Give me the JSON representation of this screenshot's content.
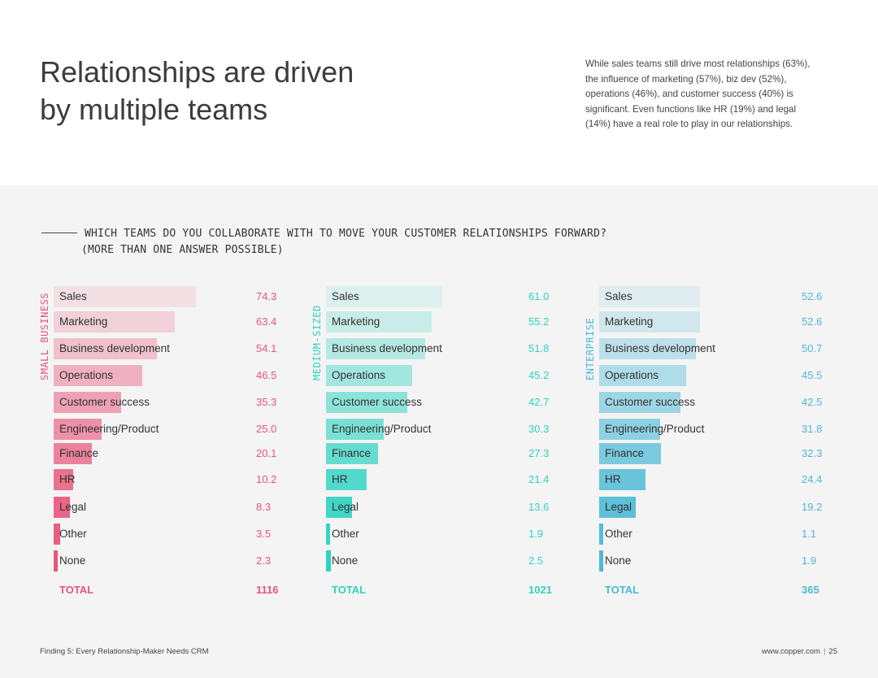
{
  "header": {
    "title_line1": "Relationships are driven",
    "title_line2": "by multiple teams",
    "intro": "While sales teams still drive most relationships (63%), the influence of marketing (57%), biz dev (52%), operations (46%), and customer success (40%) is significant. Even functions like HR (19%) and legal (14%) have a real role to play in our relationships."
  },
  "question": {
    "line1": "WHICH TEAMS DO YOU COLLABORATE WITH TO MOVE YOUR CUSTOMER RELATIONSHIPS FORWARD?",
    "line2": "(MORE THAN ONE ANSWER POSSIBLE)"
  },
  "chart_data": [
    {
      "type": "bar",
      "orientation": "horizontal",
      "segment": "SMALL BUSINESS",
      "color": "#e8547a",
      "categories": [
        "Sales",
        "Marketing",
        "Business development",
        "Operations",
        "Customer success",
        "Engineering/Product",
        "Finance",
        "HR",
        "Legal",
        "Other",
        "None"
      ],
      "values": [
        74.3,
        63.4,
        54.1,
        46.5,
        35.3,
        25.0,
        20.1,
        10.2,
        8.3,
        3.5,
        2.3
      ],
      "labels": [
        "74.3",
        "63.4",
        "54.1",
        "46.5",
        "35.3",
        "25.0",
        "20.1",
        "10.2",
        "8.3",
        "3.5",
        "2.3"
      ],
      "total_label": "TOTAL",
      "total": "1116"
    },
    {
      "type": "bar",
      "orientation": "horizontal",
      "segment": "MEDIUM-SIZED",
      "color": "#2ed3c0",
      "categories": [
        "Sales",
        "Marketing",
        "Business development",
        "Operations",
        "Customer success",
        "Engineering/Product",
        "Finance",
        "HR",
        "Legal",
        "Other",
        "None"
      ],
      "values": [
        61.0,
        55.2,
        51.8,
        45.2,
        42.7,
        30.3,
        27.3,
        21.4,
        13.6,
        1.9,
        2.5
      ],
      "labels": [
        "61.0",
        "55.2",
        "51.8",
        "45.2",
        "42.7",
        "30.3",
        "27.3",
        "21.4",
        "13.6",
        "1.9",
        "2.5"
      ],
      "total_label": "TOTAL",
      "total": "1021"
    },
    {
      "type": "bar",
      "orientation": "horizontal",
      "segment": "ENTERPRISE",
      "color": "#4cb9d6",
      "categories": [
        "Sales",
        "Marketing",
        "Business development",
        "Operations",
        "Customer success",
        "Engineering/Product",
        "Finance",
        "HR",
        "Legal",
        "Other",
        "None"
      ],
      "values": [
        52.6,
        52.6,
        50.7,
        45.5,
        42.5,
        31.8,
        32.3,
        24.4,
        19.2,
        1.1,
        1.9
      ],
      "labels": [
        "52.6",
        "52.6",
        "50.7",
        "45.5",
        "42.5",
        "31.8",
        "32.3",
        "24.4",
        "19.2",
        "1.1",
        "1.9"
      ],
      "total_label": "TOTAL",
      "total": "365"
    }
  ],
  "footer": {
    "left": "Finding 5:  Every Relationship-Maker Needs CRM",
    "site": "www.copper.com",
    "divider": "|",
    "page": "25"
  }
}
